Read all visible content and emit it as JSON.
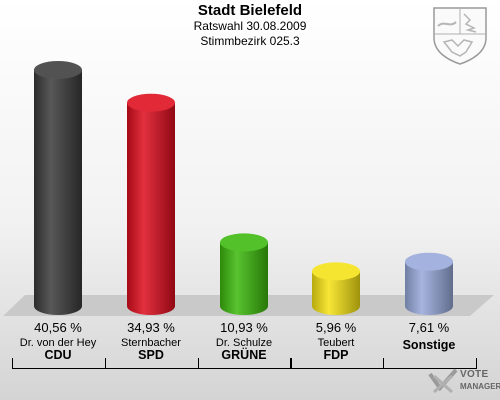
{
  "header": {
    "title": "Stadt Bielefeld",
    "subtitle": "Ratswahl 30.08.2009",
    "district": "Stimmbezirk 025.3"
  },
  "chart_data": {
    "type": "bar",
    "title": "Stadt Bielefeld",
    "ylim": [
      0,
      45
    ],
    "grid": false,
    "categories": [
      "CDU",
      "SPD",
      "GRÜNE",
      "FDP",
      "Sonstige"
    ],
    "candidates": [
      "Dr. von der Hey",
      "Sternbacher",
      "Dr. Schulze",
      "Teubert",
      ""
    ],
    "values": [
      40.56,
      34.93,
      10.93,
      5.96,
      7.61
    ],
    "labels": [
      "40,56 %",
      "34,93 %",
      "10,93 %",
      "5,96 %",
      "7,61 %"
    ],
    "colors": [
      "#3a3a3a",
      "#dd0c1d",
      "#3cb80c",
      "#f5e214",
      "#97a8d9"
    ]
  },
  "watermark": {
    "brand_line1": "VOTE",
    "brand_line2": "MANAGER",
    "crest_icon": "nrw-coat-of-arms-icon"
  }
}
